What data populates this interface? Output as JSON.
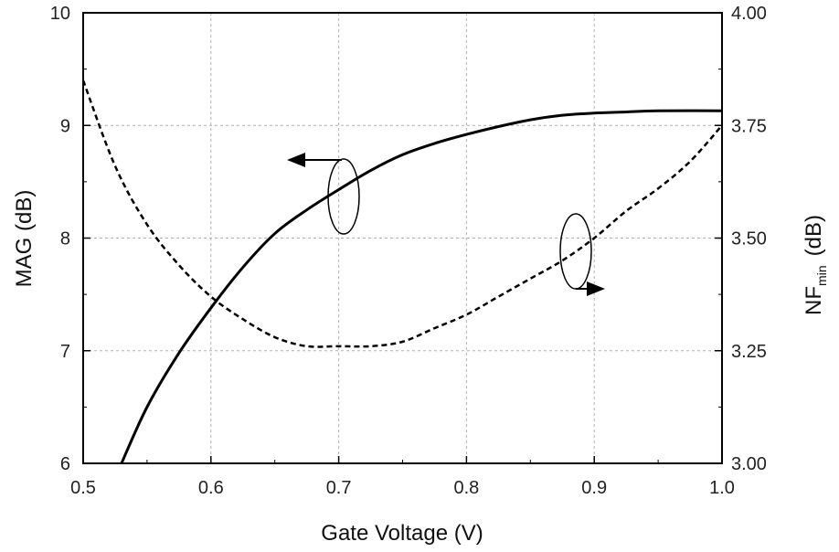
{
  "chart_data": {
    "type": "line",
    "xlabel": "Gate Voltage (V)",
    "ylabel_left": "MAG (dB)",
    "ylabel_right": {
      "base": "NF",
      "sub": "min",
      "unit": "(dB)"
    },
    "xlim": [
      0.5,
      1.0
    ],
    "ylim_left": [
      6,
      10
    ],
    "ylim_right": [
      3.0,
      4.0
    ],
    "grid": true,
    "x_ticks": [
      "0.5",
      "0.6",
      "0.7",
      "0.8",
      "0.9",
      "1.0"
    ],
    "y_left_ticks": [
      "6",
      "7",
      "8",
      "9",
      "10"
    ],
    "y_right_ticks": [
      "3.00",
      "3.25",
      "3.50",
      "3.75",
      "4.00"
    ],
    "series": [
      {
        "axis": "left",
        "style": "solid",
        "x": [
          0.53,
          0.55,
          0.575,
          0.6,
          0.625,
          0.65,
          0.675,
          0.7,
          0.725,
          0.75,
          0.775,
          0.8,
          0.825,
          0.85,
          0.875,
          0.9,
          0.925,
          0.95,
          1.0
        ],
        "y": [
          6.0,
          6.5,
          6.98,
          7.38,
          7.74,
          8.04,
          8.25,
          8.43,
          8.6,
          8.74,
          8.84,
          8.92,
          8.99,
          9.05,
          9.09,
          9.11,
          9.12,
          9.13,
          9.13
        ]
      },
      {
        "axis": "right",
        "style": "dashed",
        "x": [
          0.5,
          0.525,
          0.55,
          0.575,
          0.6,
          0.625,
          0.65,
          0.675,
          0.7,
          0.725,
          0.75,
          0.775,
          0.8,
          0.825,
          0.85,
          0.875,
          0.9,
          0.925,
          0.95,
          0.975,
          1.0
        ],
        "y": [
          3.85,
          3.66,
          3.53,
          3.44,
          3.37,
          3.32,
          3.28,
          3.26,
          3.26,
          3.26,
          3.27,
          3.3,
          3.33,
          3.37,
          3.41,
          3.45,
          3.5,
          3.56,
          3.61,
          3.67,
          3.75
        ]
      }
    ]
  }
}
